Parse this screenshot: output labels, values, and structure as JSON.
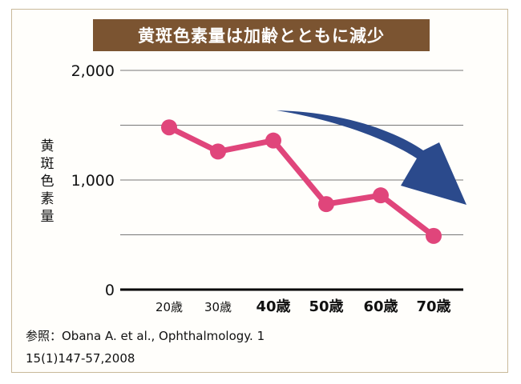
{
  "chart_data": {
    "type": "line",
    "title": "黄斑色素量は加齢とともに減少",
    "ylabel": "黄斑色素量",
    "xlabel": "",
    "categories": [
      "20歳",
      "30歳",
      "40歳",
      "50歳",
      "60歳",
      "70歳"
    ],
    "values": [
      1480,
      1260,
      1360,
      780,
      860,
      490
    ],
    "ylim": [
      0,
      2000
    ],
    "yticks": [
      "0",
      "1,000",
      "2,000"
    ],
    "ytick_values": [
      0,
      1000,
      2000
    ],
    "grid_values": [
      500,
      1000,
      1500,
      2000
    ],
    "grid": true,
    "line_color": "#e0457b",
    "arrow_color": "#2b4a8c",
    "bold_categories_from_index": 2
  },
  "reference": {
    "line1": "参照：Obana A. et al., Ophthalmology. 1",
    "line2": "15(1)147-57,2008"
  },
  "colors": {
    "title_bg": "#7b5431",
    "frame_border": "#c9b99a"
  }
}
